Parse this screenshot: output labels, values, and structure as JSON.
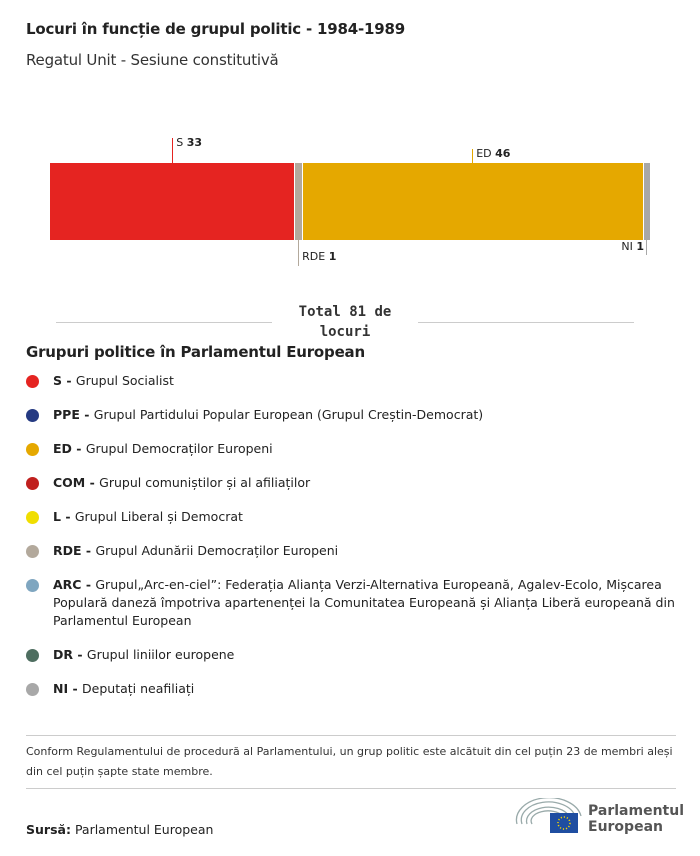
{
  "header": {
    "title": "Locuri în funcție de grupul politic - 1984-1989",
    "subtitle": "Regatul Unit - Sesiune constitutivă"
  },
  "chart_data": {
    "type": "bar",
    "orientation": "stacked-horizontal",
    "total_seats": 81,
    "series": [
      {
        "code": "S",
        "value": 33,
        "color": "#e52421"
      },
      {
        "code": "RDE",
        "value": 1,
        "color": "#b3a99c"
      },
      {
        "code": "ED",
        "value": 46,
        "color": "#e5a800"
      },
      {
        "code": "NI",
        "value": 1,
        "color": "#a8a8a8"
      }
    ],
    "total_label": "Total 81 de locuri"
  },
  "legend": {
    "title": "Grupuri politice în Parlamentul European",
    "items": [
      {
        "code": "S -",
        "name": "Grupul Socialist",
        "color": "#e52421"
      },
      {
        "code": "PPE -",
        "name": "Grupul Partidului Popular European (Grupul Creștin-Democrat)",
        "color": "#253a82"
      },
      {
        "code": "ED -",
        "name": "Grupul Democraților Europeni",
        "color": "#e5a800"
      },
      {
        "code": "COM -",
        "name": "Grupul comuniștilor și al afiliaților",
        "color": "#c0201e"
      },
      {
        "code": "L -",
        "name": "Grupul Liberal și Democrat",
        "color": "#f0de00"
      },
      {
        "code": "RDE -",
        "name": "Grupul Adunării Democraților Europeni",
        "color": "#b3a99c"
      },
      {
        "code": "ARC -",
        "name": "Grupul„Arc-en-ciel”: Federația Alianța Verzi-Alternativa Europeană, Agalev-Ecolo, Mișcarea Populară daneză împotriva apartenenței la Comunitatea Europeană și Alianța Liberă europeană din Parlamentul European",
        "color": "#7fa6c0"
      },
      {
        "code": "DR -",
        "name": "Grupul liniilor europene",
        "color": "#4e6e60"
      },
      {
        "code": "NI -",
        "name": "Deputați neafiliați",
        "color": "#a8a8a8"
      }
    ]
  },
  "footer": {
    "note": "Conform Regulamentului de procedură al Parlamentului, un grup politic este alcătuit din cel puțin 23 de membri aleși din cel puțin șapte state membre.",
    "source_label": "Sursă:",
    "source": "Parlamentul European",
    "logo_text": "Parlamentul European"
  }
}
